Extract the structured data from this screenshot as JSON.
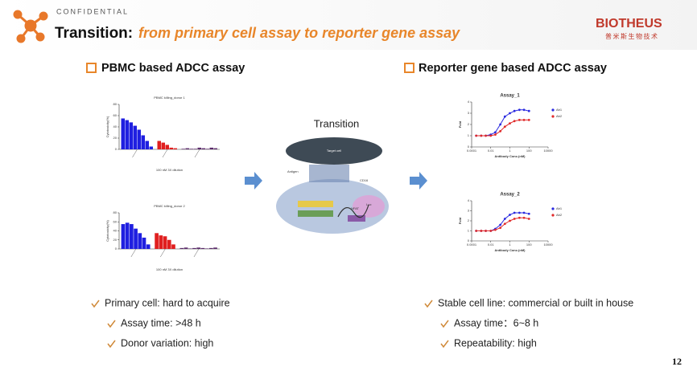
{
  "header": {
    "confidential": "CONFIDENTIAL",
    "title": "Transition:",
    "subtitle": "from primary cell assay to reporter gene assay"
  },
  "logo": {
    "brand": "BIOTHEUS",
    "chinese": "普米斯生物技术"
  },
  "left": {
    "heading": "PBMC based ADCC assay",
    "charts": [
      {
        "type": "bar",
        "title": "PBMC killing_donor 1",
        "ylabel": "Cytotoxicity(%)",
        "xlabel": "100 nM 3X dilution",
        "ylim": [
          0,
          80
        ],
        "yticks": [
          0,
          20,
          40,
          60,
          80
        ],
        "groups": [
          {
            "color": "#1f1fe0",
            "values": [
              55,
              52,
              48,
              42,
              35,
              25,
              15,
              5
            ]
          },
          {
            "color": "#e01f1f",
            "values": [
              15,
              12,
              8,
              3,
              2
            ]
          },
          {
            "color": "#5a2a6a",
            "values": [
              1,
              2,
              1,
              1,
              3,
              2,
              1,
              3,
              2
            ]
          }
        ]
      },
      {
        "type": "bar",
        "title": "PBMC killing_donor 2",
        "ylabel": "Cytotoxicity(%)",
        "xlabel": "100 nM 3X dilution",
        "ylim": [
          0,
          80
        ],
        "yticks": [
          0,
          20,
          40,
          60,
          80
        ],
        "groups": [
          {
            "color": "#1f1fe0",
            "values": [
              55,
              58,
              55,
              45,
              35,
              25,
              10
            ]
          },
          {
            "color": "#e01f1f",
            "values": [
              35,
              30,
              28,
              20,
              10
            ]
          },
          {
            "color": "#5a2a6a",
            "values": [
              2,
              3,
              1,
              2,
              3,
              2,
              1,
              2,
              3
            ]
          }
        ]
      }
    ],
    "bullets": [
      {
        "text": "Primary cell: hard to acquire",
        "level": 1
      },
      {
        "text": "Assay time: >48 h",
        "level": 2
      },
      {
        "text": "Donor variation: high",
        "level": 2
      }
    ]
  },
  "center": {
    "title": "Transition",
    "labels": [
      "Target cell",
      "Antigen",
      "CD16",
      "NFAT",
      "Luc"
    ]
  },
  "right": {
    "heading": "Reporter gene based ADCC assay",
    "charts": [
      {
        "type": "line",
        "title": "Assay_1",
        "ylabel": "Fold",
        "xlabel": "Antibody Conc.(nM)",
        "log_x": true,
        "xlim": [
          0.0001,
          10000
        ],
        "xticks": [
          0.0001,
          0.01,
          1,
          100,
          10000
        ],
        "ylim": [
          0,
          4
        ],
        "yticks": [
          0,
          1,
          2,
          3,
          4
        ],
        "series": [
          {
            "name": "Ab1",
            "color": "#2a2ae0",
            "x": [
              0.0003,
              0.001,
              0.003,
              0.01,
              0.03,
              0.1,
              0.3,
              1,
              3,
              10,
              30,
              100
            ],
            "values": [
              1,
              1,
              1,
              1.1,
              1.3,
              2,
              2.7,
              3,
              3.2,
              3.3,
              3.3,
              3.2
            ]
          },
          {
            "name": "Ab2",
            "color": "#e02a2a",
            "x": [
              0.0003,
              0.001,
              0.003,
              0.01,
              0.03,
              0.1,
              0.3,
              1,
              3,
              10,
              30,
              100
            ],
            "values": [
              1,
              1,
              1,
              1,
              1.1,
              1.4,
              1.8,
              2.1,
              2.3,
              2.4,
              2.4,
              2.4
            ]
          }
        ]
      },
      {
        "type": "line",
        "title": "Assay_2",
        "ylabel": "Fold",
        "xlabel": "Antibody Conc.(nM)",
        "log_x": true,
        "xlim": [
          0.0001,
          10000
        ],
        "xticks": [
          0.0001,
          0.01,
          1,
          100,
          10000
        ],
        "ylim": [
          0,
          4
        ],
        "yticks": [
          0,
          1,
          2,
          3,
          4
        ],
        "series": [
          {
            "name": "Ab1",
            "color": "#2a2ae0",
            "x": [
              0.0003,
              0.001,
              0.003,
              0.01,
              0.03,
              0.1,
              0.3,
              1,
              3,
              10,
              30,
              100
            ],
            "values": [
              1,
              1,
              1,
              1,
              1.2,
              1.6,
              2.2,
              2.6,
              2.8,
              2.8,
              2.8,
              2.7
            ]
          },
          {
            "name": "Ab2",
            "color": "#e02a2a",
            "x": [
              0.0003,
              0.001,
              0.003,
              0.01,
              0.03,
              0.1,
              0.3,
              1,
              3,
              10,
              30,
              100
            ],
            "values": [
              1,
              1,
              1,
              1,
              1.1,
              1.3,
              1.7,
              2,
              2.2,
              2.3,
              2.3,
              2.2
            ]
          }
        ]
      }
    ],
    "bullets": [
      {
        "text": "Stable cell line: commercial or built in house",
        "level": 1
      },
      {
        "text": "Assay time：6~8 h",
        "level": 2
      },
      {
        "text": "Repeatability: high",
        "level": 2
      }
    ]
  },
  "page_number": "12"
}
